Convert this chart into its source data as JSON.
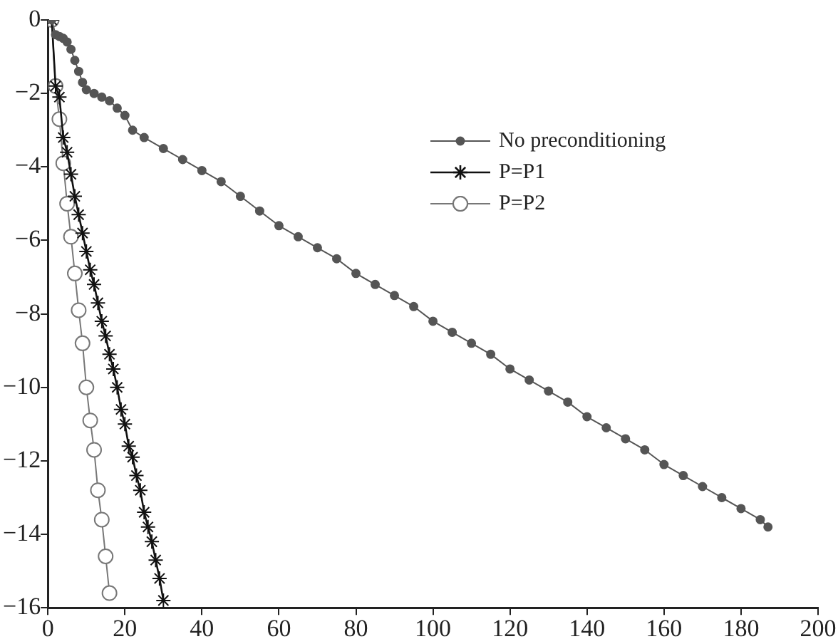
{
  "chart_data": {
    "type": "line",
    "xlim": [
      0,
      200
    ],
    "xticks": [
      0,
      20,
      40,
      60,
      80,
      100,
      120,
      140,
      160,
      180,
      200
    ],
    "ylim": [
      -16,
      0
    ],
    "yticks": [
      -16,
      -14,
      -12,
      -10,
      -8,
      -6,
      -4,
      -2,
      0
    ],
    "grid": false,
    "legend": "right",
    "line_style": "solid",
    "series": [
      {
        "name": "No preconditioning",
        "color": "#555555",
        "marker": "circle",
        "x": [
          1,
          2,
          3,
          4,
          5,
          6,
          7,
          8,
          9,
          10,
          12,
          14,
          16,
          18,
          20,
          22,
          25,
          30,
          35,
          40,
          45,
          50,
          55,
          60,
          65,
          70,
          75,
          80,
          85,
          90,
          95,
          100,
          105,
          110,
          115,
          120,
          125,
          130,
          135,
          140,
          145,
          150,
          155,
          160,
          165,
          170,
          175,
          180,
          185,
          187
        ],
        "values": [
          0,
          -0.4,
          -0.45,
          -0.5,
          -0.6,
          -0.8,
          -1.1,
          -1.4,
          -1.7,
          -1.9,
          -2.0,
          -2.1,
          -2.2,
          -2.4,
          -2.6,
          -3.0,
          -3.2,
          -3.5,
          -3.8,
          -4.1,
          -4.4,
          -4.8,
          -5.2,
          -5.6,
          -5.9,
          -6.2,
          -6.5,
          -6.9,
          -7.2,
          -7.5,
          -7.8,
          -8.2,
          -8.5,
          -8.8,
          -9.1,
          -9.5,
          -9.8,
          -10.1,
          -10.4,
          -10.8,
          -11.1,
          -11.4,
          -11.7,
          -12.1,
          -12.4,
          -12.7,
          -13.0,
          -13.3,
          -13.6,
          -13.8
        ]
      },
      {
        "name": "P=P1",
        "color": "#111111",
        "marker": "cross",
        "x": [
          1,
          2,
          3,
          4,
          5,
          6,
          7,
          8,
          9,
          10,
          11,
          12,
          13,
          14,
          15,
          16,
          17,
          18,
          19,
          20,
          21,
          22,
          23,
          24,
          25,
          26,
          27,
          28,
          29,
          30
        ],
        "values": [
          0,
          -1.8,
          -2.1,
          -3.2,
          -3.6,
          -4.2,
          -4.8,
          -5.3,
          -5.8,
          -6.3,
          -6.8,
          -7.2,
          -7.7,
          -8.2,
          -8.6,
          -9.1,
          -9.5,
          -10.0,
          -10.6,
          -11.0,
          -11.6,
          -11.9,
          -12.4,
          -12.8,
          -13.4,
          -13.8,
          -14.2,
          -14.7,
          -15.2,
          -15.8
        ]
      },
      {
        "name": "P=P2",
        "color": "#777777",
        "marker": "circle",
        "x": [
          1,
          2,
          3,
          4,
          5,
          6,
          7,
          8,
          9,
          10,
          11,
          12,
          13,
          14,
          15,
          16
        ],
        "values": [
          0,
          -1.8,
          -2.7,
          -3.9,
          -5.0,
          -5.9,
          -6.9,
          -7.9,
          -8.8,
          -10.0,
          -10.9,
          -11.7,
          -12.8,
          -13.6,
          -14.6,
          -15.6
        ]
      }
    ]
  }
}
